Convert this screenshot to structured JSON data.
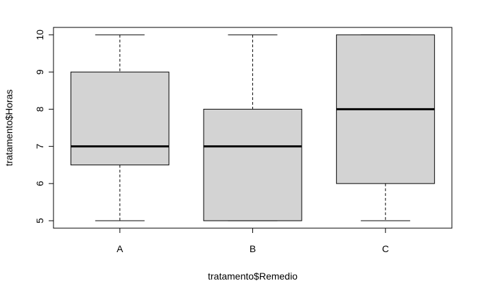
{
  "chart_data": {
    "type": "boxplot",
    "title": "",
    "xlabel": "tratamento$Remedio",
    "ylabel": "tratamento$Horas",
    "ylim": [
      4.8,
      10.2
    ],
    "y_ticks": [
      5,
      6,
      7,
      8,
      9,
      10
    ],
    "grid": false,
    "legend": "none",
    "categories": [
      "A",
      "B",
      "C"
    ],
    "boxes": [
      {
        "category": "A",
        "min": 5,
        "q1": 6.5,
        "median": 7,
        "q3": 9,
        "max": 10
      },
      {
        "category": "B",
        "min": 5,
        "q1": 5,
        "median": 7,
        "q3": 8,
        "max": 10
      },
      {
        "category": "C",
        "min": 5,
        "q1": 6,
        "median": 8,
        "q3": 10,
        "max": 10
      }
    ],
    "colors": {
      "box_fill": "#d3d3d3",
      "stroke": "#000000"
    }
  }
}
